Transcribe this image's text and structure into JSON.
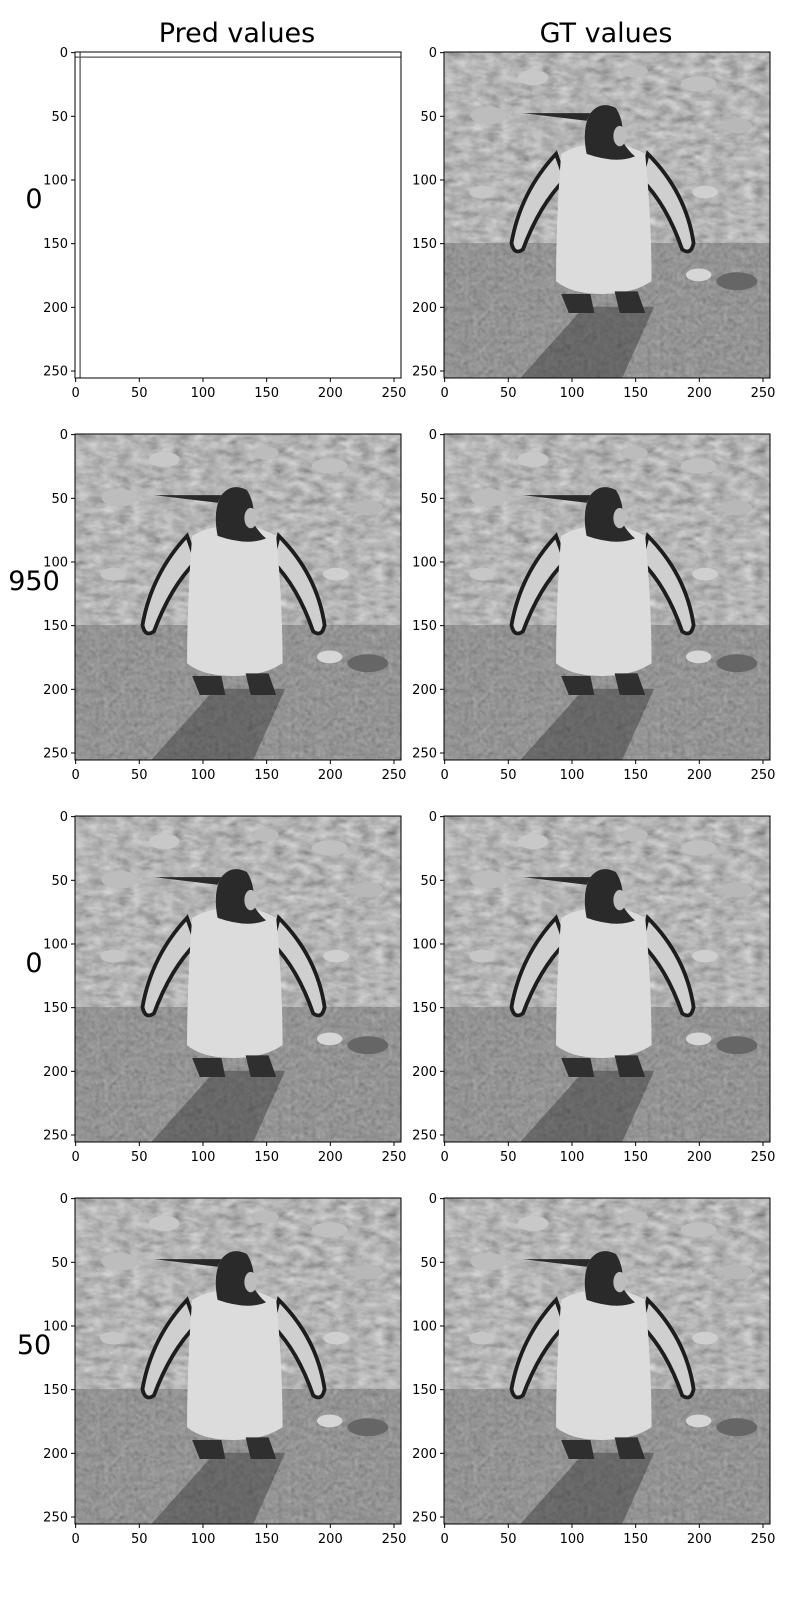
{
  "columns": [
    "Pred values",
    "GT values"
  ],
  "rows": [
    {
      "label": "0",
      "pred_image": "noise-blob-image",
      "gt_image": "penguin-photo-image"
    },
    {
      "label": "950",
      "pred_image": "penguin-photo-image",
      "gt_image": "penguin-photo-image"
    },
    {
      "label": "0",
      "pred_image": "penguin-photo-image",
      "gt_image": "penguin-photo-image"
    },
    {
      "label": "50",
      "pred_image": "penguin-photo-image",
      "gt_image": "penguin-photo-image"
    }
  ],
  "axis": {
    "x_ticks": [
      "0",
      "50",
      "100",
      "150",
      "200",
      "250"
    ],
    "y_ticks": [
      "0",
      "50",
      "100",
      "150",
      "200",
      "250"
    ],
    "range": [
      0,
      255
    ]
  }
}
